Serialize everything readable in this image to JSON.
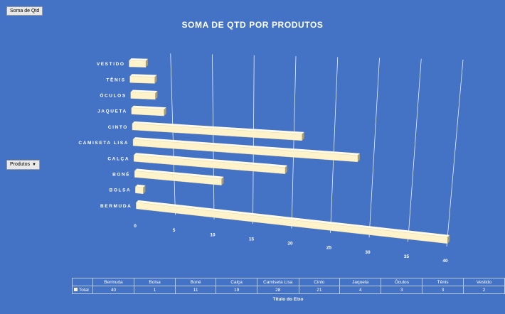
{
  "buttons": {
    "values_field": "Soma de Qtd",
    "axis_field": "Produtos"
  },
  "chart_data": {
    "type": "bar",
    "title": "SOMA DE QTD POR PRODUTOS",
    "categories": [
      "Bermuda",
      "Bolsa",
      "Boné",
      "Calça",
      "Camiseta Lisa",
      "Cinto",
      "Jaqueta",
      "Óculos",
      "Tênis",
      "Vestido"
    ],
    "axis_category_labels": [
      "BERMUDA",
      "BOLSA",
      "BONÉ",
      "CALÇA",
      "CAMISETA LISA",
      "CINTO",
      "JAQUETA",
      "ÓCULOS",
      "TÊNIS",
      "VESTIDO"
    ],
    "series": [
      {
        "name": "Total",
        "values": [
          40,
          1,
          11,
          19,
          28,
          21,
          4,
          3,
          3,
          2
        ]
      }
    ],
    "xlim": [
      0,
      40
    ],
    "x_ticks": [
      "0",
      "5",
      "10",
      "15",
      "20",
      "25",
      "30",
      "35",
      "40"
    ],
    "xlabel": "Título do Eixo",
    "grid": true,
    "orientation": "horizontal-3d",
    "bar_color": "#fff3cc",
    "background_color": "#4472c4"
  }
}
